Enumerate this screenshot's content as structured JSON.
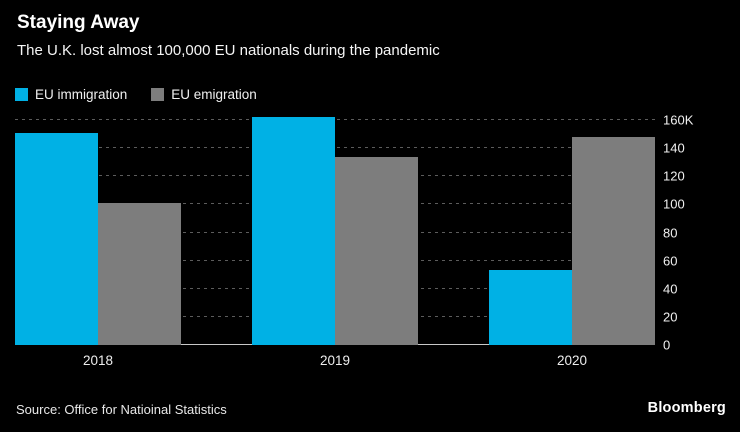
{
  "header": {
    "title": "Staying Away",
    "subtitle": "The U.K. lost almost 100,000 EU nationals during the pandemic"
  },
  "legend": [
    {
      "label": "EU immigration",
      "color": "#00b1e5"
    },
    {
      "label": "EU emigration",
      "color": "#7d7d7d"
    }
  ],
  "chart_data": {
    "type": "bar",
    "title": "Staying Away",
    "subtitle": "The U.K. lost almost 100,000 EU nationals during the pandemic",
    "categories": [
      "2018",
      "2019",
      "2020"
    ],
    "series": [
      {
        "name": "EU immigration",
        "color": "#00b1e5",
        "values": [
          151,
          162,
          53
        ]
      },
      {
        "name": "EU emigration",
        "color": "#7d7d7d",
        "values": [
          101,
          134,
          148
        ]
      }
    ],
    "unit": "K",
    "ylim": [
      0,
      160
    ],
    "ytick_step": 20,
    "ytick_labels": [
      "0",
      "20",
      "40",
      "60",
      "80",
      "100",
      "120",
      "140",
      "160K"
    ],
    "grid": "dashed horizontal, y-axis labels on right",
    "legend_position": "top-left"
  },
  "footer": {
    "source": "Source: Office for Natioinal Statistics",
    "brand": "Bloomberg"
  },
  "colors": {
    "background": "#000000",
    "immigration": "#00b1e5",
    "emigration": "#7d7d7d",
    "grid": "#5c5c5c",
    "baseline": "#c8c8c8",
    "text": "#ffffff"
  }
}
